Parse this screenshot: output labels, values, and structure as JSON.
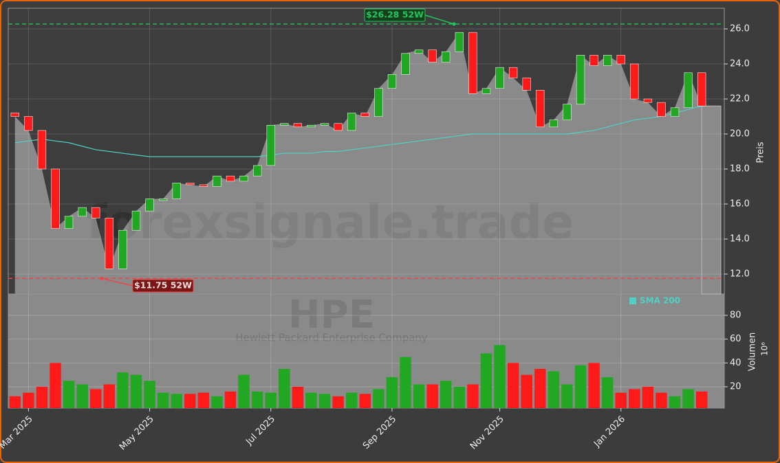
{
  "chart_data": {
    "type": "candlestick",
    "watermark": "forexsignale.trade",
    "ticker": "HPE",
    "company": "Hewlett Packard Enterprise Company",
    "ylabel": "Preis",
    "categories": [
      null,
      "Mar 2025",
      null,
      null,
      null,
      null,
      null,
      null,
      null,
      null,
      "May 2025",
      null,
      null,
      null,
      null,
      null,
      null,
      null,
      null,
      "Jul 2025",
      null,
      null,
      null,
      null,
      null,
      null,
      null,
      null,
      "Sep 2025",
      null,
      null,
      null,
      null,
      null,
      null,
      null,
      "Nov 2025",
      null,
      null,
      null,
      null,
      null,
      null,
      null,
      null,
      "Jan 2026",
      null,
      null,
      null,
      null,
      null,
      null
    ],
    "open": [
      21.2,
      21.0,
      20.2,
      18.0,
      14.6,
      15.3,
      15.8,
      15.2,
      12.3,
      14.5,
      15.6,
      16.2,
      16.3,
      17.2,
      17.1,
      17.0,
      17.6,
      17.3,
      17.6,
      18.2,
      20.5,
      20.6,
      20.4,
      20.5,
      20.6,
      20.2,
      21.2,
      21.0,
      22.6,
      23.4,
      24.6,
      24.8,
      24.1,
      24.7,
      25.8,
      22.3,
      22.6,
      23.8,
      23.2,
      22.5,
      20.4,
      20.8,
      21.7,
      24.5,
      23.9,
      24.5,
      24.0,
      22.0,
      21.8,
      21.0,
      21.5,
      23.5
    ],
    "close": [
      21.0,
      20.2,
      18.0,
      14.6,
      15.3,
      15.8,
      15.2,
      12.3,
      14.5,
      15.6,
      16.3,
      16.3,
      17.2,
      17.1,
      17.0,
      17.6,
      17.3,
      17.6,
      18.2,
      20.5,
      20.6,
      20.4,
      20.5,
      20.6,
      20.2,
      21.2,
      21.0,
      22.6,
      23.4,
      24.6,
      24.8,
      24.1,
      24.7,
      25.8,
      22.3,
      22.6,
      23.8,
      23.2,
      22.5,
      20.4,
      20.8,
      21.7,
      24.5,
      23.9,
      24.5,
      24.0,
      22.0,
      21.8,
      21.0,
      21.5,
      23.5,
      21.6
    ],
    "up_color": "#22a722",
    "down_color": "#ff1a1a",
    "series": [
      {
        "name": "SMA 200",
        "color": "#4fd1c5",
        "values": [
          19.5,
          19.6,
          19.7,
          19.6,
          19.5,
          19.3,
          19.1,
          19.0,
          18.9,
          18.8,
          18.7,
          18.7,
          18.7,
          18.7,
          18.7,
          18.7,
          18.7,
          18.7,
          18.7,
          18.8,
          18.9,
          18.9,
          18.9,
          19.0,
          19.0,
          19.1,
          19.2,
          19.3,
          19.4,
          19.5,
          19.6,
          19.7,
          19.8,
          19.9,
          20.0,
          20.0,
          20.0,
          20.0,
          20.0,
          20.0,
          20.0,
          20.0,
          20.1,
          20.2,
          20.4,
          20.6,
          20.8,
          20.9,
          21.0,
          21.2,
          21.4,
          21.6
        ]
      }
    ],
    "legend": "upper right",
    "ylim": [
      10.86,
      27.18
    ],
    "yticks": [
      {
        "value": 12,
        "label": "12.0"
      },
      {
        "value": 14,
        "label": "14.0"
      },
      {
        "value": 16,
        "label": "16.0"
      },
      {
        "value": 18,
        "label": "18.0"
      },
      {
        "value": 20,
        "label": "20.0"
      },
      {
        "value": 22,
        "label": "22.0"
      },
      {
        "value": 24,
        "label": "24.0"
      },
      {
        "value": 26,
        "label": "26.0"
      }
    ],
    "grid": true,
    "annotations": [
      {
        "label": "$26.28 52W",
        "value": 26.28,
        "color": "#22c55e"
      },
      {
        "label": "$11.75 52W",
        "value": 11.75,
        "color": "#ef4444"
      }
    ],
    "volume": {
      "label": "Volumen",
      "unit": "10⁶",
      "values": [
        12,
        15,
        20,
        40,
        25,
        22,
        18,
        22,
        32,
        30,
        25,
        15,
        14,
        14,
        15,
        12,
        16,
        30,
        16,
        15,
        35,
        20,
        15,
        14,
        12,
        15,
        14,
        18,
        28,
        45,
        22,
        22,
        25,
        20,
        22,
        48,
        55,
        40,
        30,
        35,
        33,
        22,
        38,
        40,
        28,
        15,
        18,
        20,
        15,
        12,
        18,
        16
      ],
      "ylim": [
        2.1,
        97.9
      ],
      "yticks": [
        20,
        40,
        60,
        80
      ]
    }
  }
}
